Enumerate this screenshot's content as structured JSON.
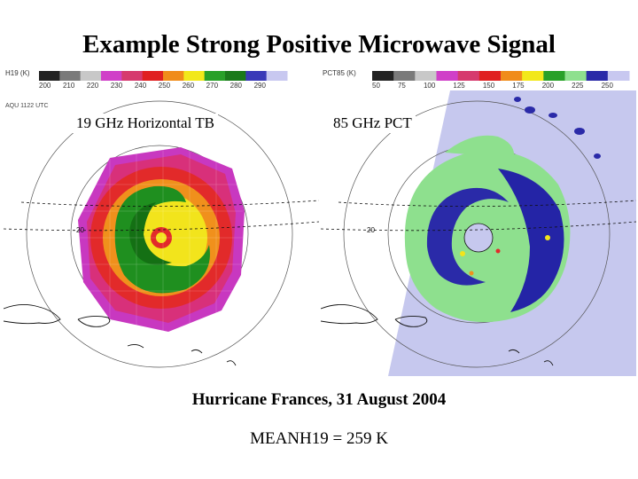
{
  "title": "Example Strong Positive Microwave Signal",
  "left_panel": {
    "colorbar_label": "H19 (K)",
    "colorbar_ticks": [
      "200",
      "210",
      "220",
      "230",
      "240",
      "250",
      "260",
      "270",
      "280",
      "290"
    ],
    "image_id": "AQU 1122 UTC",
    "label": "19 GHz Horizontal TB",
    "lat_label": "20"
  },
  "right_panel": {
    "colorbar_label": "PCT85 (K)",
    "colorbar_ticks": [
      "50",
      "75",
      "100",
      "125",
      "150",
      "175",
      "200",
      "225",
      "250"
    ],
    "label": "85 GHz PCT",
    "lat_label": "20"
  },
  "caption": {
    "event": "Hurricane Frances, 31 August 2004",
    "metric": "MEANH19 = 259 K"
  },
  "colors": {
    "h19_scale": [
      "#222222",
      "#7a7a7a",
      "#c8c8c8",
      "#d040c8",
      "#d63a6e",
      "#e02020",
      "#f08c1a",
      "#f2e81a",
      "#28a028",
      "#1a7a1a",
      "#3a3ab8",
      "#c8c8f0"
    ],
    "pct_scale": [
      "#222222",
      "#7a7a7a",
      "#c8c8c8",
      "#d040c8",
      "#d63a6e",
      "#e02020",
      "#f08c1a",
      "#f2e81a",
      "#28a028",
      "#8ee08e",
      "#2a2aa8",
      "#c8c8f0"
    ]
  }
}
